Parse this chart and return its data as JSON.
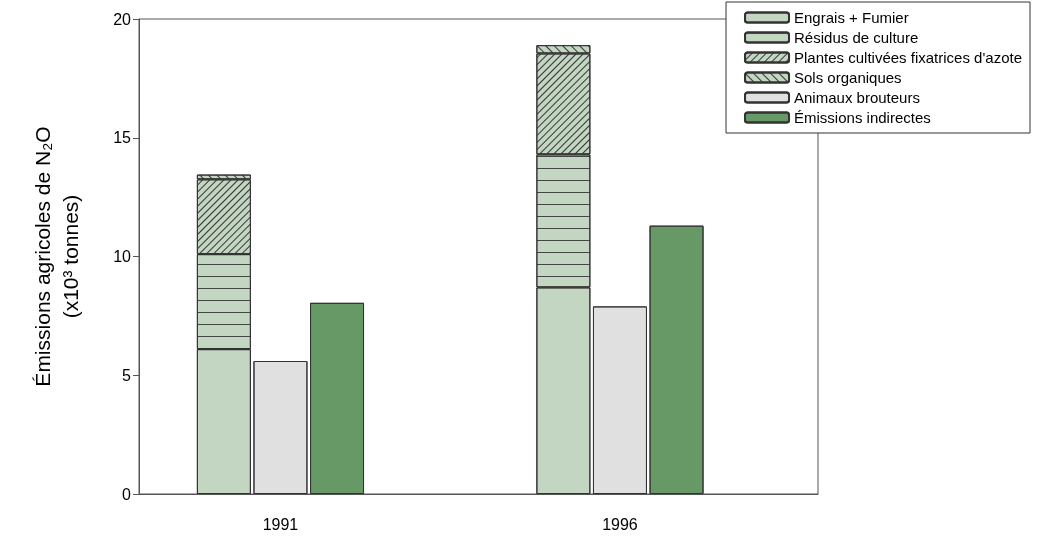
{
  "chart_data": {
    "type": "bar",
    "ylabel": "Émissions agricoles de N₂O\n(x10³ tonnes)",
    "categories": [
      null,
      null,
      "1991",
      null,
      null,
      null,
      null,
      null,
      "1996",
      null,
      null,
      null
    ],
    "stacked": true,
    "ylim": [
      0,
      20
    ],
    "yticks": [
      0,
      5,
      10,
      15,
      20
    ],
    "grid": false,
    "legend": "top right",
    "series": [
      {
        "name": "Engrais + Fumier",
        "color": "#c2d6c2",
        "values": [
          null,
          6.1,
          null,
          null,
          null,
          null,
          null,
          8.7,
          null,
          null,
          null,
          null
        ]
      },
      {
        "name": "Résidus de culture",
        "color": "#c2d6c2",
        "values": [
          null,
          4.0,
          null,
          null,
          null,
          null,
          null,
          5.6,
          null,
          null,
          null,
          null
        ]
      },
      {
        "name": "Plantes cultivées fixatrices d'azote",
        "color": "#c2d6c2",
        "values": [
          null,
          3.15,
          null,
          null,
          null,
          null,
          null,
          4.25,
          null,
          null,
          null,
          null
        ]
      },
      {
        "name": "Sols organiques",
        "color": "#c2d6c2",
        "values": [
          null,
          0.2,
          null,
          null,
          null,
          null,
          null,
          0.35,
          null,
          null,
          null,
          null
        ]
      },
      {
        "name": "Animaux brouteurs",
        "color": "#e0e0e0",
        "values": [
          null,
          null,
          5.6,
          null,
          null,
          null,
          null,
          null,
          7.9,
          null,
          null,
          null
        ]
      },
      {
        "name": "Émissions indirectes",
        "color": "#669966",
        "values": [
          null,
          null,
          null,
          8.05,
          null,
          null,
          null,
          null,
          null,
          11.3,
          null,
          null
        ]
      }
    ]
  }
}
